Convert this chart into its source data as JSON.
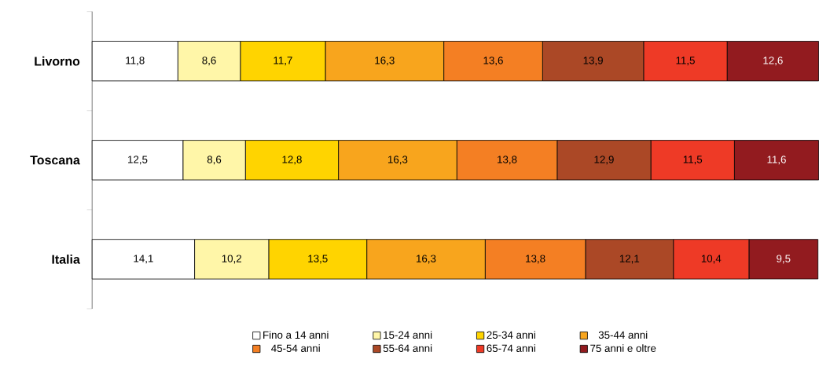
{
  "chart_data": {
    "type": "bar",
    "orientation": "horizontal",
    "stacked": true,
    "categories": [
      "Livorno",
      "Toscana",
      "Italia"
    ],
    "tick_labels": "y",
    "legend": "bottom",
    "series": [
      {
        "name": "Fino a 14 anni",
        "color": "#ffffff",
        "values": [
          11.8,
          12.5,
          14.1
        ],
        "value_labels": [
          "11,8",
          "12,5",
          "14,1"
        ]
      },
      {
        "name": "15-24 anni",
        "color": "#fff6a8",
        "values": [
          8.6,
          8.6,
          10.2
        ],
        "value_labels": [
          "8,6",
          "8,6",
          "10,2"
        ]
      },
      {
        "name": "25-34 anni",
        "color": "#ffd400",
        "values": [
          11.7,
          12.8,
          13.5
        ],
        "value_labels": [
          "11,7",
          "12,8",
          "13,5"
        ]
      },
      {
        "name": "35-44 anni",
        "color": "#f8a51d",
        "values": [
          16.3,
          16.3,
          16.3
        ],
        "value_labels": [
          "16,3",
          "16,3",
          "16,3"
        ]
      },
      {
        "name": "45-54 anni",
        "color": "#f47f23",
        "values": [
          13.6,
          13.8,
          13.8
        ],
        "value_labels": [
          "13,6",
          "13,8",
          "13,8"
        ]
      },
      {
        "name": "55-64 anni",
        "color": "#ab4826",
        "values": [
          13.9,
          12.9,
          12.1
        ],
        "value_labels": [
          "13,9",
          "12,9",
          "12,1"
        ]
      },
      {
        "name": "65-74 anni",
        "color": "#ee3a26",
        "values": [
          11.5,
          11.5,
          10.4
        ],
        "value_labels": [
          "11,5",
          "11,5",
          "10,4"
        ]
      },
      {
        "name": "75 anni e oltre",
        "color": "#921b1f",
        "values": [
          12.6,
          11.6,
          9.5
        ],
        "value_labels": [
          "12,6",
          "11,6",
          "9,5"
        ]
      }
    ]
  }
}
